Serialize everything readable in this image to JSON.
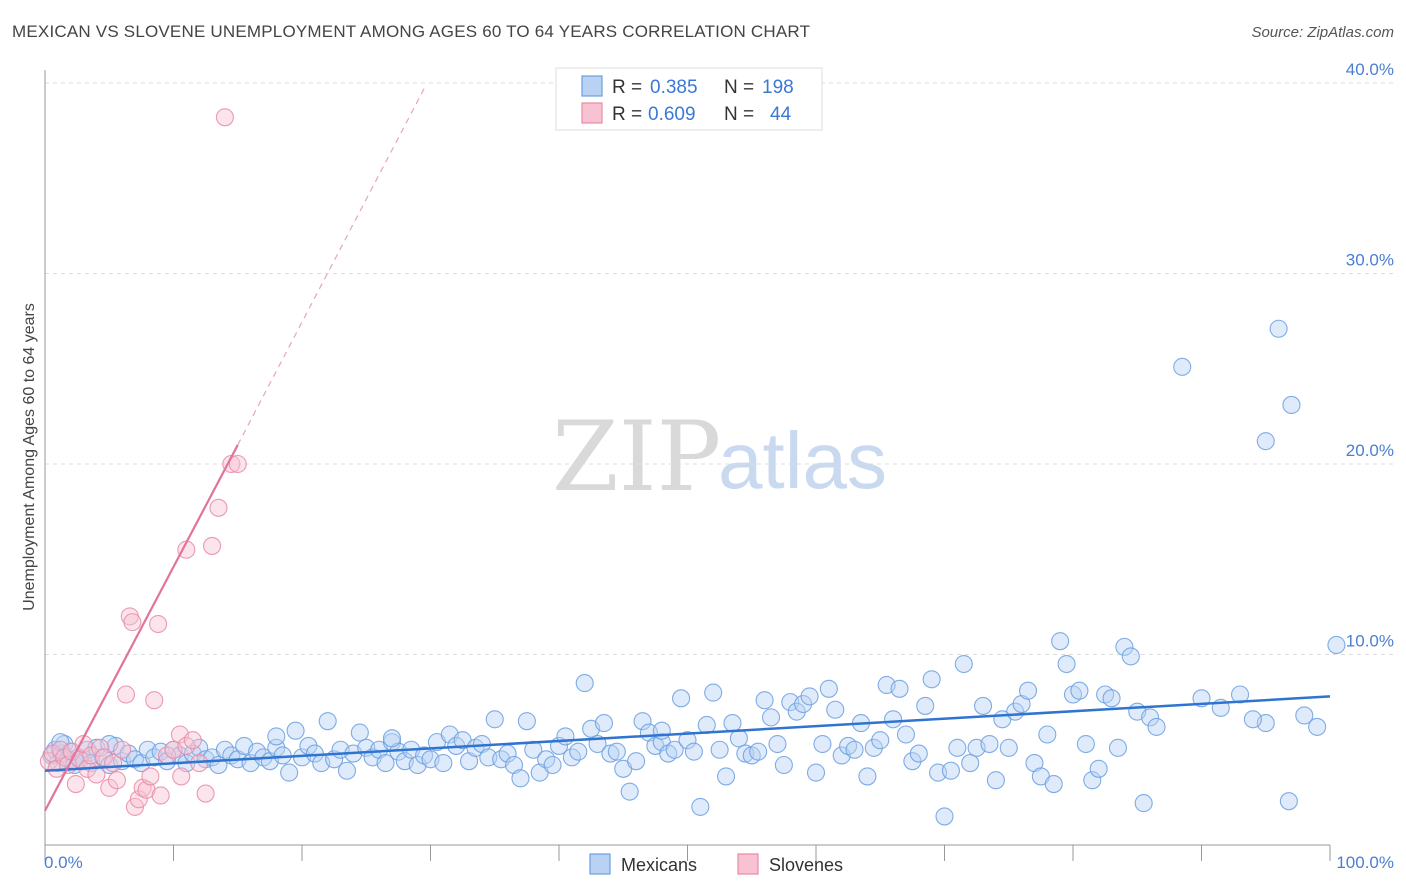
{
  "title": "MEXICAN VS SLOVENE UNEMPLOYMENT AMONG AGES 60 TO 64 YEARS CORRELATION CHART",
  "source": "Source: ZipAtlas.com",
  "watermark": {
    "zip": "ZIP",
    "atlas": "atlas"
  },
  "legend": {
    "r_label": "R =",
    "n_label": "N =",
    "rows": [
      {
        "series": "Mexicans",
        "r": "0.385",
        "n": "198",
        "color": "#6a9fe0",
        "fill": "#b9d2f4"
      },
      {
        "series": "Slovenes",
        "r": "0.609",
        "n": "44",
        "color": "#e98aa7",
        "fill": "#f7c3d3"
      }
    ]
  },
  "bottom_legend": [
    "Mexicans",
    "Slovenes"
  ],
  "chart_data": {
    "type": "scatter",
    "title": "MEXICAN VS SLOVENE UNEMPLOYMENT AMONG AGES 60 TO 64 YEARS CORRELATION CHART",
    "xlabel": "",
    "ylabel": "Unemployment Among Ages 60 to 64 years",
    "xlim": [
      0,
      100
    ],
    "ylim": [
      0,
      42
    ],
    "x_tick_labels": [
      "0.0%",
      "100.0%"
    ],
    "y_ticks": [
      10,
      20,
      30,
      40
    ],
    "y_tick_labels": [
      "10.0%",
      "20.0%",
      "30.0%",
      "40.0%"
    ],
    "series": [
      {
        "name": "Mexicans",
        "color": "#6a9fe0",
        "trend": {
          "x0": 0,
          "y0": 3.9,
          "x1": 100,
          "y1": 7.8
        },
        "points": [
          [
            0.5,
            4.7
          ],
          [
            0.8,
            5.0
          ],
          [
            1.0,
            4.3
          ],
          [
            1.3,
            4.8
          ],
          [
            1.5,
            5.3
          ],
          [
            1.8,
            4.5
          ],
          [
            2.0,
            4.9
          ],
          [
            2.3,
            4.2
          ],
          [
            2.6,
            4.6
          ],
          [
            3.0,
            4.4
          ],
          [
            3.3,
            5.0
          ],
          [
            3.6,
            4.3
          ],
          [
            4.0,
            5.1
          ],
          [
            4.5,
            4.6
          ],
          [
            5.0,
            4.2
          ],
          [
            5.5,
            5.2
          ],
          [
            6.0,
            4.4
          ],
          [
            6.5,
            4.8
          ],
          [
            7.0,
            4.5
          ],
          [
            7.5,
            4.3
          ],
          [
            8.0,
            5.0
          ],
          [
            8.5,
            4.6
          ],
          [
            9.0,
            4.9
          ],
          [
            9.5,
            4.4
          ],
          [
            10.0,
            5.0
          ],
          [
            10.5,
            4.7
          ],
          [
            11.0,
            4.3
          ],
          [
            11.5,
            4.8
          ],
          [
            12.0,
            5.1
          ],
          [
            12.5,
            4.5
          ],
          [
            13.0,
            4.6
          ],
          [
            13.5,
            4.2
          ],
          [
            14.0,
            5.0
          ],
          [
            14.5,
            4.7
          ],
          [
            15.0,
            4.5
          ],
          [
            15.5,
            5.2
          ],
          [
            16.0,
            4.3
          ],
          [
            16.5,
            4.9
          ],
          [
            17.0,
            4.6
          ],
          [
            17.5,
            4.4
          ],
          [
            18.0,
            5.1
          ],
          [
            18.5,
            4.7
          ],
          [
            19.0,
            3.8
          ],
          [
            19.5,
            6.0
          ],
          [
            20.0,
            4.6
          ],
          [
            20.5,
            5.2
          ],
          [
            21.0,
            4.8
          ],
          [
            21.5,
            4.3
          ],
          [
            22.0,
            6.5
          ],
          [
            22.5,
            4.5
          ],
          [
            23.0,
            5.0
          ],
          [
            23.5,
            3.9
          ],
          [
            24.0,
            4.8
          ],
          [
            24.5,
            5.9
          ],
          [
            25.0,
            5.1
          ],
          [
            25.5,
            4.6
          ],
          [
            26.0,
            5.0
          ],
          [
            26.5,
            4.3
          ],
          [
            27.0,
            5.4
          ],
          [
            27.5,
            4.9
          ],
          [
            28.0,
            4.4
          ],
          [
            28.5,
            5.0
          ],
          [
            29.0,
            4.2
          ],
          [
            29.5,
            4.7
          ],
          [
            30.0,
            4.5
          ],
          [
            30.5,
            5.4
          ],
          [
            31.0,
            4.3
          ],
          [
            31.5,
            5.8
          ],
          [
            32.0,
            5.2
          ],
          [
            32.5,
            5.5
          ],
          [
            33.0,
            4.4
          ],
          [
            33.5,
            5.1
          ],
          [
            34.0,
            5.3
          ],
          [
            34.5,
            4.6
          ],
          [
            35.0,
            6.6
          ],
          [
            35.5,
            4.5
          ],
          [
            36.0,
            4.8
          ],
          [
            36.5,
            4.2
          ],
          [
            37.0,
            3.5
          ],
          [
            37.5,
            6.5
          ],
          [
            38.0,
            5.0
          ],
          [
            38.5,
            3.8
          ],
          [
            39.0,
            4.5
          ],
          [
            39.5,
            4.2
          ],
          [
            40.0,
            5.2
          ],
          [
            40.5,
            5.7
          ],
          [
            41.0,
            4.6
          ],
          [
            41.5,
            4.9
          ],
          [
            42.0,
            8.5
          ],
          [
            42.5,
            6.1
          ],
          [
            43.0,
            5.3
          ],
          [
            43.5,
            6.4
          ],
          [
            44.0,
            4.8
          ],
          [
            44.5,
            4.9
          ],
          [
            45.0,
            4.0
          ],
          [
            45.5,
            2.8
          ],
          [
            46.0,
            4.4
          ],
          [
            46.5,
            6.5
          ],
          [
            47.0,
            5.9
          ],
          [
            47.5,
            5.2
          ],
          [
            48.0,
            5.4
          ],
          [
            48.5,
            4.8
          ],
          [
            49.0,
            5.0
          ],
          [
            49.5,
            7.7
          ],
          [
            50.0,
            5.5
          ],
          [
            50.5,
            4.9
          ],
          [
            51.0,
            2.0
          ],
          [
            51.5,
            6.3
          ],
          [
            52.0,
            8.0
          ],
          [
            52.5,
            5.0
          ],
          [
            53.0,
            3.6
          ],
          [
            53.5,
            6.4
          ],
          [
            54.0,
            5.6
          ],
          [
            54.5,
            4.8
          ],
          [
            55.0,
            4.7
          ],
          [
            55.5,
            4.9
          ],
          [
            56.0,
            7.6
          ],
          [
            56.5,
            6.7
          ],
          [
            57.0,
            5.3
          ],
          [
            57.5,
            4.2
          ],
          [
            58.0,
            7.5
          ],
          [
            58.5,
            7.0
          ],
          [
            59.0,
            7.4
          ],
          [
            59.5,
            7.8
          ],
          [
            60.0,
            3.8
          ],
          [
            60.5,
            5.3
          ],
          [
            61.0,
            8.2
          ],
          [
            61.5,
            7.1
          ],
          [
            62.0,
            4.7
          ],
          [
            62.5,
            5.2
          ],
          [
            63.0,
            5.0
          ],
          [
            63.5,
            6.4
          ],
          [
            64.0,
            3.6
          ],
          [
            64.5,
            5.1
          ],
          [
            65.0,
            5.5
          ],
          [
            65.5,
            8.4
          ],
          [
            66.0,
            6.6
          ],
          [
            66.5,
            8.2
          ],
          [
            67.0,
            5.8
          ],
          [
            67.5,
            4.4
          ],
          [
            68.0,
            4.8
          ],
          [
            68.5,
            7.3
          ],
          [
            69.0,
            8.7
          ],
          [
            69.5,
            3.8
          ],
          [
            70.0,
            1.5
          ],
          [
            70.5,
            3.9
          ],
          [
            71.0,
            5.1
          ],
          [
            71.5,
            9.5
          ],
          [
            72.0,
            4.3
          ],
          [
            72.5,
            5.1
          ],
          [
            73.0,
            7.3
          ],
          [
            73.5,
            5.3
          ],
          [
            74.0,
            3.4
          ],
          [
            74.5,
            6.6
          ],
          [
            75.0,
            5.1
          ],
          [
            75.5,
            7.0
          ],
          [
            76.0,
            7.4
          ],
          [
            76.5,
            8.1
          ],
          [
            77.0,
            4.3
          ],
          [
            77.5,
            3.6
          ],
          [
            78.0,
            5.8
          ],
          [
            78.5,
            3.2
          ],
          [
            79.0,
            10.7
          ],
          [
            79.5,
            9.5
          ],
          [
            80.0,
            7.9
          ],
          [
            80.5,
            8.1
          ],
          [
            81.0,
            5.3
          ],
          [
            81.5,
            3.4
          ],
          [
            82.0,
            4.0
          ],
          [
            82.5,
            7.9
          ],
          [
            83.0,
            7.7
          ],
          [
            83.5,
            5.1
          ],
          [
            84.0,
            10.4
          ],
          [
            84.5,
            9.9
          ],
          [
            85.0,
            7.0
          ],
          [
            85.5,
            2.2
          ],
          [
            86.0,
            6.7
          ],
          [
            86.5,
            6.2
          ],
          [
            88.5,
            25.1
          ],
          [
            95.0,
            21.2
          ],
          [
            96.0,
            27.1
          ],
          [
            97.0,
            23.1
          ],
          [
            96.8,
            2.3
          ],
          [
            1.2,
            5.4
          ],
          [
            5.0,
            5.3
          ],
          [
            18.0,
            5.7
          ],
          [
            27.0,
            5.6
          ],
          [
            48.0,
            6.0
          ],
          [
            100.5,
            10.5
          ],
          [
            95.0,
            6.4
          ],
          [
            98.0,
            6.8
          ],
          [
            99.0,
            6.2
          ],
          [
            90.0,
            7.7
          ],
          [
            91.5,
            7.2
          ],
          [
            93.0,
            7.9
          ],
          [
            94.0,
            6.6
          ]
        ]
      },
      {
        "name": "Slovenes",
        "color": "#e98aa7",
        "trend": {
          "x0": 0,
          "y0": 1.8,
          "x1": 15,
          "y1": 21.0
        },
        "trend_dashed": {
          "x0": 15,
          "y0": 21.0,
          "x1": 29.5,
          "y1": 39.7
        },
        "points": [
          [
            0.3,
            4.4
          ],
          [
            0.6,
            4.8
          ],
          [
            0.9,
            4.0
          ],
          [
            1.2,
            5.0
          ],
          [
            1.5,
            4.6
          ],
          [
            1.8,
            4.2
          ],
          [
            2.1,
            4.9
          ],
          [
            2.4,
            3.2
          ],
          [
            2.7,
            4.5
          ],
          [
            3.0,
            5.3
          ],
          [
            3.3,
            4.0
          ],
          [
            3.6,
            4.7
          ],
          [
            4.0,
            3.7
          ],
          [
            4.3,
            5.1
          ],
          [
            4.6,
            4.6
          ],
          [
            5.0,
            3.0
          ],
          [
            5.3,
            4.3
          ],
          [
            5.6,
            3.4
          ],
          [
            6.0,
            5.0
          ],
          [
            6.3,
            7.9
          ],
          [
            6.6,
            12.0
          ],
          [
            6.8,
            11.7
          ],
          [
            7.0,
            2.0
          ],
          [
            7.3,
            2.4
          ],
          [
            7.6,
            3.0
          ],
          [
            7.9,
            2.9
          ],
          [
            8.2,
            3.6
          ],
          [
            8.5,
            7.6
          ],
          [
            8.8,
            11.6
          ],
          [
            9.0,
            2.6
          ],
          [
            9.5,
            4.7
          ],
          [
            10.0,
            5.0
          ],
          [
            10.5,
            5.8
          ],
          [
            11.0,
            5.2
          ],
          [
            11.5,
            5.5
          ],
          [
            12.0,
            4.3
          ],
          [
            12.5,
            2.7
          ],
          [
            13.0,
            15.7
          ],
          [
            13.5,
            17.7
          ],
          [
            14.0,
            38.2
          ],
          [
            14.5,
            20.0
          ],
          [
            15.0,
            20.0
          ],
          [
            10.6,
            3.6
          ],
          [
            11.0,
            15.5
          ]
        ]
      }
    ]
  }
}
